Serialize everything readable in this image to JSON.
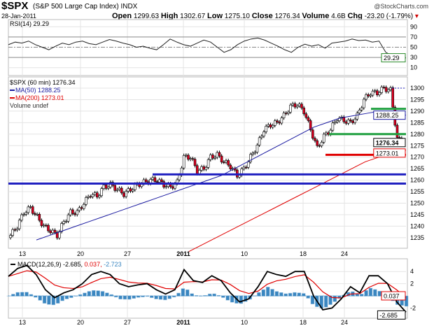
{
  "header": {
    "symbol": "$SPX",
    "name": "(S&P 500 Large Cap Index)",
    "exchange": "INDX",
    "watermark": "@StockCharts.com",
    "date": "28-Jan-2011",
    "open_label": "Open",
    "open": "1299.63",
    "high_label": "High",
    "high": "1302.67",
    "low_label": "Low",
    "low": "1275.10",
    "close_label": "Close",
    "close": "1276.34",
    "volume_label": "Volume",
    "volume": "4.6B",
    "chg_label": "Chg",
    "chg": "-23.20 (-1.79%)",
    "chg_color": "#d00000"
  },
  "chart_data": [
    {
      "type": "line",
      "panel": "RSI",
      "legend": "RSI(14) 29.29",
      "last_value": "29.29",
      "ylim": [
        0,
        100
      ],
      "yticks": [
        "90",
        "70",
        "50",
        "30",
        "10"
      ],
      "reference_lines": [
        70,
        50,
        30
      ],
      "values": [
        55,
        60,
        58,
        62,
        55,
        50,
        45,
        52,
        58,
        55,
        60,
        62,
        57,
        55,
        60,
        65,
        62,
        58,
        55,
        50,
        52,
        48,
        45,
        55,
        66,
        60,
        55,
        52,
        58,
        64,
        60,
        50,
        40,
        45,
        55,
        62,
        66,
        68,
        64,
        58,
        52,
        45,
        40,
        50,
        56,
        52,
        55,
        48,
        58,
        60,
        62,
        66,
        63,
        64,
        60,
        62,
        40,
        33,
        30,
        29
      ]
    },
    {
      "type": "ohlc",
      "panel": "price",
      "legend": "$SPX (60 min) 1276.34",
      "ylim": [
        1232,
        1303
      ],
      "yticks": [
        1300,
        1295,
        1290,
        1285,
        1280,
        1275,
        1270,
        1265,
        1260,
        1255,
        1250,
        1245,
        1240,
        1235
      ],
      "xticks": [
        "13",
        "20",
        "27",
        "2011",
        "10",
        "18",
        "24"
      ],
      "closes": [
        1236,
        1240,
        1246,
        1248,
        1244,
        1240,
        1238,
        1236,
        1242,
        1246,
        1246,
        1250,
        1254,
        1253,
        1257,
        1258,
        1256,
        1254,
        1256,
        1258,
        1259,
        1260,
        1260,
        1258,
        1257,
        1259,
        1270,
        1270,
        1264,
        1265,
        1270,
        1271,
        1268,
        1266,
        1262,
        1265,
        1270,
        1275,
        1282,
        1284,
        1285,
        1288,
        1292,
        1293,
        1290,
        1282,
        1274,
        1279,
        1282,
        1287,
        1286,
        1285,
        1288,
        1295,
        1298,
        1298,
        1300,
        1299,
        1278,
        1276
      ],
      "series": [
        {
          "name": "MA(50) 1288.25",
          "color": "#1a1aa0",
          "last": "1288.25",
          "values": [
            1234,
            1236,
            1238,
            1240,
            1242,
            1244,
            1246,
            1248,
            1250,
            1252,
            1254,
            1256,
            1258,
            1260,
            1262,
            1265,
            1268,
            1271,
            1274,
            1277,
            1280,
            1283,
            1285,
            1287,
            1288,
            1289,
            1290,
            1289,
            1288.25
          ]
        },
        {
          "name": "MA(200) 1273.01",
          "color": "#e00000",
          "last": "1273.01",
          "values": [
            1229,
            1232,
            1235,
            1238,
            1241,
            1244,
            1247,
            1250,
            1253,
            1256,
            1259,
            1262,
            1265,
            1268,
            1270,
            1272,
            1273.01
          ]
        },
        {
          "name": "Volume undef"
        }
      ],
      "horizontal_lines": [
        {
          "price": 1262.5,
          "color": "#2020c0"
        },
        {
          "price": 1258.5,
          "color": "#2020c0"
        },
        {
          "price": 1291,
          "color": "#20a040"
        },
        {
          "price": 1280,
          "color": "#20a040"
        },
        {
          "price": 1271,
          "color": "#e00000"
        }
      ],
      "last_labels": [
        "1288.25",
        "1276.34",
        "1273.01"
      ]
    },
    {
      "type": "line",
      "panel": "MACD",
      "legend_name": "MACD(12,26,9)",
      "legend_macd": "-2.685",
      "legend_signal": "0.037",
      "legend_hist": "-2.723",
      "ylim": [
        -3,
        5.5
      ],
      "yticks": [
        "4",
        "2",
        "-2"
      ],
      "macd": [
        3.2,
        4.5,
        5,
        3.5,
        1,
        -0.3,
        0.5,
        1,
        2,
        3.5,
        4,
        3.5,
        2,
        1.5,
        1.8,
        2,
        1,
        0.3,
        1,
        4.3,
        2.5,
        2.2,
        3.3,
        2.5,
        0.5,
        -1,
        -0.5,
        1.5,
        4,
        3.5,
        3.2,
        4,
        4,
        0,
        -2.3,
        -2,
        -0.5,
        1.5,
        0.5,
        3.3,
        3.3,
        2,
        -1,
        -2.685
      ],
      "signal_last": "0.037",
      "macd_last": "-2.685",
      "hist_last": "-2.723"
    }
  ]
}
